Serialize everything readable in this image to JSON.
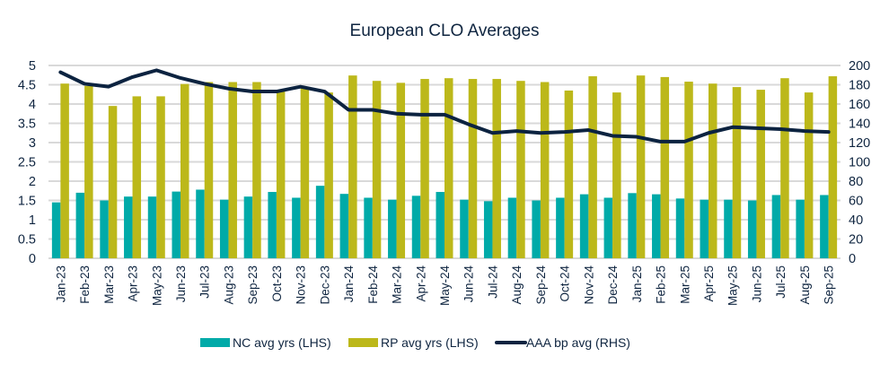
{
  "chart_data": {
    "type": "bar",
    "title": "European CLO Averages",
    "xlabel": "",
    "ylabel": "",
    "y2label": "",
    "categories": [
      "Jan-23",
      "Feb-23",
      "Mar-23",
      "Apr-23",
      "May-23",
      "Jun-23",
      "Jul-23",
      "Aug-23",
      "Sep-23",
      "Oct-23",
      "Nov-23",
      "Dec-23",
      "Jan-24",
      "Feb-24",
      "Mar-24",
      "Apr-24",
      "May-24",
      "Jun-24",
      "Jul-24",
      "Aug-24",
      "Sep-24",
      "Oct-24",
      "Nov-24",
      "Dec-24",
      "Jan-25",
      "Feb-25",
      "Mar-25",
      "Apr-25",
      "May-25",
      "Jun-25",
      "Jul-25",
      "Aug-25",
      "Sep-25"
    ],
    "ylim": [
      0,
      5
    ],
    "y_ticks": [
      "0",
      "0.5",
      "1",
      "1.5",
      "2",
      "2.5",
      "3",
      "3.5",
      "4",
      "4.5",
      "5"
    ],
    "y2lim": [
      0,
      200
    ],
    "y2_ticks": [
      "0",
      "20",
      "40",
      "60",
      "80",
      "100",
      "120",
      "140",
      "160",
      "180",
      "200"
    ],
    "grid": true,
    "legend_position": "bottom",
    "series": [
      {
        "name": "NC avg yrs (LHS)",
        "type": "bar",
        "axis": "left",
        "color": "#00aaa8",
        "values": [
          1.45,
          1.7,
          1.5,
          1.6,
          1.6,
          1.73,
          1.78,
          1.52,
          1.6,
          1.72,
          1.57,
          1.88,
          1.67,
          1.57,
          1.52,
          1.62,
          1.72,
          1.52,
          1.48,
          1.57,
          1.5,
          1.57,
          1.66,
          1.57,
          1.69,
          1.66,
          1.55,
          1.52,
          1.52,
          1.5,
          1.64,
          1.52,
          1.64
        ]
      },
      {
        "name": "RP avg yrs (LHS)",
        "type": "bar",
        "axis": "left",
        "color": "#bcb81a",
        "values": [
          4.53,
          4.47,
          3.95,
          4.2,
          4.2,
          4.52,
          4.57,
          4.57,
          4.57,
          4.35,
          4.43,
          4.3,
          4.74,
          4.6,
          4.55,
          4.65,
          4.67,
          4.65,
          4.65,
          4.6,
          4.57,
          4.35,
          4.72,
          4.3,
          4.74,
          4.7,
          4.58,
          4.53,
          4.44,
          4.37,
          4.67,
          4.3,
          4.72
        ]
      },
      {
        "name": "AAA bp avg (RHS)",
        "type": "line",
        "axis": "right",
        "color": "#0c2340",
        "values": [
          193,
          181,
          178,
          188,
          195,
          187,
          181,
          176,
          173,
          173,
          178,
          173,
          154,
          154,
          150,
          149,
          149,
          139,
          130,
          132,
          130,
          131,
          133,
          127,
          126,
          121,
          121,
          130,
          136,
          135,
          134,
          132,
          131
        ]
      }
    ]
  }
}
